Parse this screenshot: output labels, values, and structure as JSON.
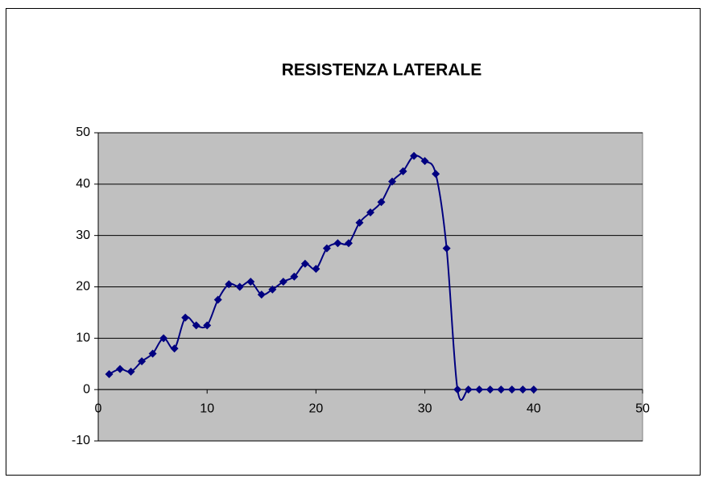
{
  "chart_data": {
    "type": "scatter",
    "title": "RESISTENZA LATERALE",
    "x": [
      1,
      2,
      3,
      4,
      5,
      6,
      7,
      8,
      9,
      10,
      11,
      12,
      13,
      14,
      15,
      16,
      17,
      18,
      19,
      20,
      21,
      22,
      23,
      24,
      25,
      26,
      27,
      28,
      29,
      30,
      31,
      32,
      33,
      34,
      35,
      36,
      37,
      38,
      39,
      40
    ],
    "series": [
      {
        "color": "#000080",
        "values": [
          3,
          4,
          3.5,
          5.5,
          7,
          10,
          8,
          14,
          12.5,
          12.5,
          17.5,
          20.5,
          20,
          21,
          18.5,
          19.5,
          21,
          22,
          24.5,
          23.5,
          27.5,
          28.5,
          28.5,
          32.5,
          34.5,
          36.5,
          40.5,
          42.5,
          45.5,
          44.5,
          42,
          27.5,
          0,
          0,
          0,
          0,
          0,
          0,
          0,
          0
        ]
      }
    ],
    "xlim": [
      0,
      50
    ],
    "xticks": [
      0,
      10,
      20,
      30,
      40,
      50
    ],
    "ylim": [
      -10,
      50
    ],
    "yticks": [
      -10,
      0,
      10,
      20,
      30,
      40,
      50
    ],
    "grid": true,
    "smooth": true
  }
}
